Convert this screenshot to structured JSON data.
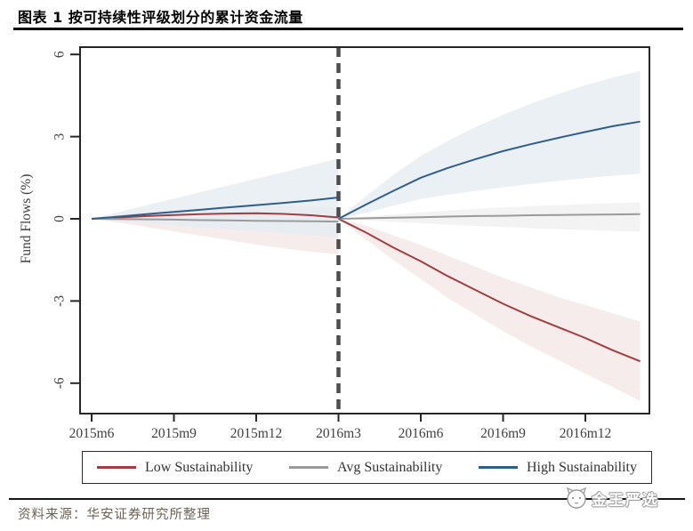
{
  "header": {
    "title": "图表 1 按可持续性评级划分的累计资金流量"
  },
  "footer": {
    "source_label": "资料来源：",
    "source_text": "华安证券研究所整理",
    "watermark": "金王严选"
  },
  "chart_data": {
    "type": "line",
    "title": "",
    "xlabel": "",
    "ylabel": "Fund Flows (%)",
    "yticks": [
      6,
      3,
      0,
      -3,
      -6
    ],
    "ylim": [
      -7.1,
      6.3
    ],
    "x_tick_labels": [
      "2015m6",
      "2015m9",
      "2015m12",
      "2016m3",
      "2016m6",
      "2016m9",
      "2016m12"
    ],
    "x_tick_months": [
      0,
      3,
      6,
      9,
      12,
      15,
      18
    ],
    "xlim_months": [
      -0.4,
      20.8
    ],
    "event_month": 9,
    "event_date": "2016m3",
    "grid": false,
    "legend_position": "bottom",
    "bands": "95% confidence intervals shown as shaded regions",
    "series": [
      {
        "name": "Low Sustainability",
        "color": "#a33d40",
        "band_color": "#f3e7e7",
        "pre": {
          "months": [
            0,
            1,
            2,
            3,
            4,
            5,
            6,
            7,
            8,
            9
          ],
          "values": [
            0,
            0.05,
            0.1,
            0.14,
            0.17,
            0.19,
            0.2,
            0.18,
            0.13,
            0.05
          ],
          "band_upper": [
            0,
            0.12,
            0.24,
            0.33,
            0.4,
            0.45,
            0.48,
            0.48,
            0.45,
            0.4
          ],
          "band_lower": [
            0,
            -0.14,
            -0.3,
            -0.46,
            -0.62,
            -0.78,
            -0.94,
            -1.08,
            -1.2,
            -1.3
          ]
        },
        "post": {
          "months": [
            9,
            10,
            11,
            12,
            13,
            14,
            15,
            16,
            17,
            18,
            19,
            20
          ],
          "values": [
            0,
            -0.5,
            -1.05,
            -1.55,
            -2.1,
            -2.6,
            -3.1,
            -3.55,
            -3.95,
            -4.35,
            -4.8,
            -5.2
          ],
          "band_upper": [
            0,
            -0.25,
            -0.6,
            -0.95,
            -1.35,
            -1.75,
            -2.15,
            -2.5,
            -2.85,
            -3.15,
            -3.45,
            -3.75
          ],
          "band_lower": [
            0,
            -0.75,
            -1.5,
            -2.2,
            -2.9,
            -3.5,
            -4.1,
            -4.65,
            -5.15,
            -5.65,
            -6.15,
            -6.65
          ]
        }
      },
      {
        "name": "Avg Sustainability",
        "color": "#9b9b9b",
        "band_color": "#f0f0f0",
        "pre": {
          "months": [
            0,
            1,
            2,
            3,
            4,
            5,
            6,
            7,
            8,
            9
          ],
          "values": [
            0,
            -0.01,
            -0.02,
            -0.03,
            -0.05,
            -0.06,
            -0.07,
            -0.08,
            -0.09,
            -0.1
          ],
          "band_upper": [
            0,
            0.05,
            0.08,
            0.12,
            0.15,
            0.18,
            0.2,
            0.22,
            0.24,
            0.25
          ],
          "band_lower": [
            0,
            -0.07,
            -0.13,
            -0.18,
            -0.25,
            -0.3,
            -0.35,
            -0.38,
            -0.42,
            -0.45
          ]
        },
        "post": {
          "months": [
            9,
            10,
            11,
            12,
            13,
            14,
            15,
            16,
            17,
            18,
            19,
            20
          ],
          "values": [
            0,
            0.02,
            0.04,
            0.06,
            0.08,
            0.1,
            0.11,
            0.13,
            0.14,
            0.15,
            0.16,
            0.17
          ],
          "band_upper": [
            0,
            0.08,
            0.16,
            0.23,
            0.3,
            0.36,
            0.41,
            0.46,
            0.5,
            0.54,
            0.57,
            0.6
          ],
          "band_lower": [
            0,
            -0.06,
            -0.11,
            -0.16,
            -0.21,
            -0.26,
            -0.3,
            -0.34,
            -0.38,
            -0.41,
            -0.44,
            -0.47
          ]
        }
      },
      {
        "name": "High Sustainability",
        "color": "#2e5f8a",
        "band_color": "#e6ecf2",
        "pre": {
          "months": [
            0,
            1,
            2,
            3,
            4,
            5,
            6,
            7,
            8,
            9
          ],
          "values": [
            0,
            0.08,
            0.17,
            0.25,
            0.33,
            0.42,
            0.5,
            0.58,
            0.67,
            0.78
          ],
          "band_upper": [
            0,
            0.25,
            0.5,
            0.74,
            0.98,
            1.22,
            1.46,
            1.7,
            1.95,
            2.2
          ],
          "band_lower": [
            0,
            -0.08,
            -0.16,
            -0.24,
            -0.31,
            -0.38,
            -0.45,
            -0.52,
            -0.6,
            -0.68
          ]
        },
        "post": {
          "months": [
            9,
            10,
            11,
            12,
            13,
            14,
            15,
            16,
            17,
            18,
            19,
            20
          ],
          "values": [
            0,
            0.52,
            1.02,
            1.5,
            1.86,
            2.18,
            2.47,
            2.72,
            2.95,
            3.17,
            3.38,
            3.55
          ],
          "band_upper": [
            0,
            0.82,
            1.6,
            2.3,
            2.85,
            3.35,
            3.8,
            4.2,
            4.55,
            4.88,
            5.16,
            5.4
          ],
          "band_lower": [
            0,
            0.22,
            0.48,
            0.72,
            0.88,
            1.02,
            1.15,
            1.27,
            1.38,
            1.48,
            1.57,
            1.65
          ]
        }
      }
    ]
  }
}
